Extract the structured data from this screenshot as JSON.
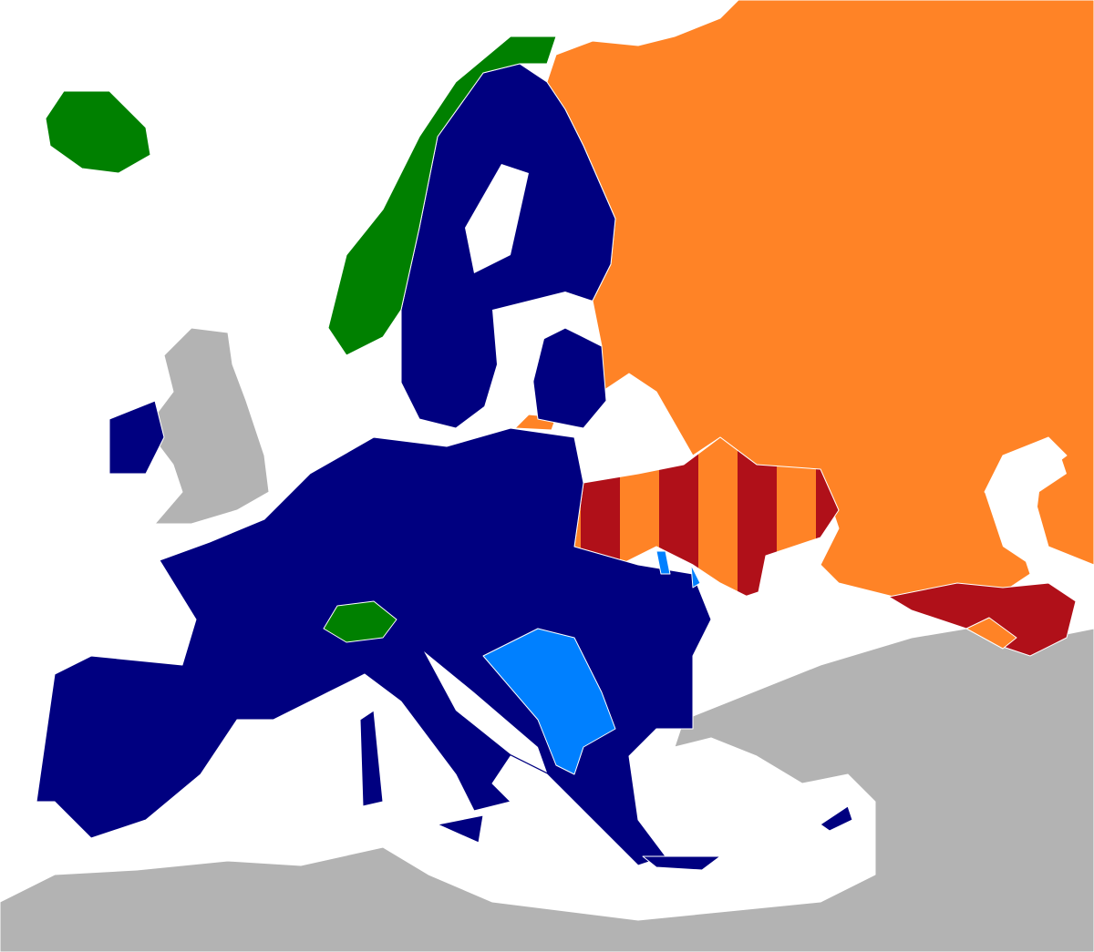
{
  "map": {
    "background_color": "#ffffff",
    "categories": [
      {
        "key": "navy",
        "color": "#000080"
      },
      {
        "key": "green",
        "color": "#008000"
      },
      {
        "key": "orange",
        "color": "#ff8326"
      },
      {
        "key": "darkred",
        "color": "#b01019"
      },
      {
        "key": "lightblue",
        "color": "#0080ff"
      },
      {
        "key": "grey",
        "color": "#b3b3b3"
      }
    ],
    "striped_regions": [
      "ukraine"
    ]
  }
}
